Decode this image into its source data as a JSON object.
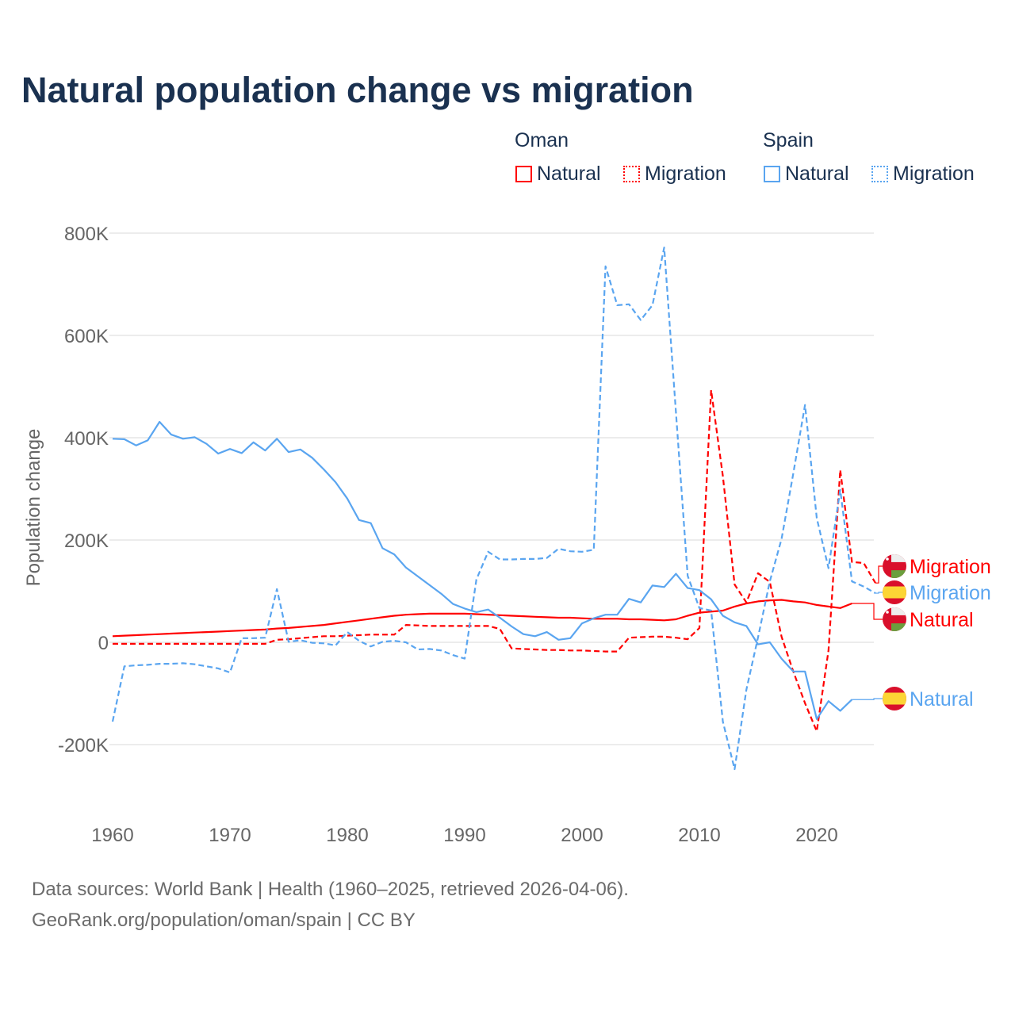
{
  "chart_data": {
    "type": "line",
    "title": "Natural population change vs migration",
    "xlabel": "",
    "ylabel": "Population change",
    "xlim": [
      1960,
      2025
    ],
    "ylim": [
      -200000,
      800000
    ],
    "x_ticks": [
      "1960",
      "1970",
      "1980",
      "1990",
      "2000",
      "2010",
      "2020"
    ],
    "x_tick_values": [
      1960,
      1970,
      1980,
      1990,
      2000,
      2010,
      2020
    ],
    "y_ticks": [
      "800K",
      "600K",
      "400K",
      "200K",
      "0",
      "-200K"
    ],
    "y_tick_values": [
      800000,
      600000,
      400000,
      200000,
      0,
      -200000
    ],
    "grid": true,
    "legend_placement": "top-right",
    "legend_groups": [
      "Oman",
      "Spain"
    ],
    "series": [
      {
        "name": "Natural",
        "country": "Oman",
        "style": "solid",
        "color": "#ff0000",
        "end_label": "Natural",
        "start_year": 1960,
        "values": [
          12000,
          13000,
          14000,
          15000,
          16000,
          17000,
          18000,
          19000,
          20000,
          21000,
          22000,
          23000,
          24000,
          25000,
          27000,
          28000,
          30000,
          32000,
          34000,
          37000,
          40000,
          43000,
          46000,
          49000,
          52000,
          54000,
          55000,
          56000,
          56000,
          56000,
          56000,
          55000,
          54000,
          53000,
          52000,
          51000,
          50000,
          49000,
          48000,
          48000,
          47000,
          46000,
          46000,
          46000,
          45000,
          45000,
          44000,
          43000,
          45000,
          52000,
          58000,
          60000,
          62000,
          70000,
          76000,
          80000,
          82000,
          83000,
          80000,
          78000,
          73000,
          70000,
          67000,
          76000
        ]
      },
      {
        "name": "Migration",
        "country": "Oman",
        "style": "dashed",
        "color": "#ff0000",
        "end_label": "Migration",
        "start_year": 1960,
        "values": [
          -3000,
          -3000,
          -3000,
          -3000,
          -3000,
          -3000,
          -3000,
          -3000,
          -3000,
          -3000,
          -3000,
          -3000,
          -3000,
          -3000,
          5000,
          6000,
          8000,
          10000,
          12000,
          12000,
          13000,
          14000,
          15000,
          15000,
          15000,
          34000,
          33000,
          32000,
          32000,
          32000,
          32000,
          32000,
          32000,
          26000,
          -12000,
          -13000,
          -14000,
          -15000,
          -15000,
          -16000,
          -16000,
          -17000,
          -18000,
          -18000,
          9000,
          10000,
          11000,
          11000,
          9000,
          6000,
          28000,
          493000,
          325000,
          113000,
          78000,
          135000,
          118000,
          11000,
          -57000,
          -119000,
          -174000,
          -16000,
          337000,
          157000,
          155000,
          116000
        ]
      },
      {
        "name": "Natural",
        "country": "Spain",
        "style": "solid",
        "color": "#5aa5f0",
        "end_label": "Natural",
        "start_year": 1960,
        "values": [
          398000,
          397000,
          385000,
          395000,
          431000,
          406000,
          398000,
          401000,
          388000,
          369000,
          378000,
          370000,
          391000,
          375000,
          398000,
          372000,
          377000,
          361000,
          338000,
          313000,
          281000,
          239000,
          233000,
          184000,
          172000,
          146000,
          129000,
          112000,
          95000,
          75000,
          66000,
          59000,
          64000,
          48000,
          31000,
          16000,
          12000,
          20000,
          5000,
          8000,
          37000,
          47000,
          54000,
          54000,
          85000,
          78000,
          111000,
          108000,
          134000,
          106000,
          102000,
          84000,
          52000,
          39000,
          32000,
          -4000,
          0,
          -32000,
          -57000,
          -57000,
          -150000,
          -115000,
          -134000,
          -112000
        ]
      },
      {
        "name": "Migration",
        "country": "Spain",
        "style": "dashed",
        "color": "#5aa5f0",
        "end_label": "Migration",
        "start_year": 1960,
        "values": [
          -155000,
          -47000,
          -45000,
          -44000,
          -42000,
          -42000,
          -41000,
          -43000,
          -47000,
          -51000,
          -59000,
          8000,
          8000,
          9000,
          104000,
          1000,
          4000,
          -1000,
          -2000,
          -6000,
          20000,
          3000,
          -8000,
          1000,
          3000,
          0,
          -14000,
          -13000,
          -16000,
          -25000,
          -32000,
          123000,
          177000,
          162000,
          162000,
          163000,
          163000,
          165000,
          183000,
          178000,
          177000,
          181000,
          735000,
          659000,
          661000,
          630000,
          659000,
          772000,
          450000,
          130000,
          67000,
          62000,
          -155000,
          -248000,
          -93000,
          10000,
          119000,
          202000,
          330000,
          464000,
          243000,
          145000,
          298000,
          119000,
          109000,
          96000
        ]
      }
    ]
  },
  "legend": {
    "oman": {
      "heading": "Oman",
      "natural": "Natural",
      "migration": "Migration"
    },
    "spain": {
      "heading": "Spain",
      "natural": "Natural",
      "migration": "Migration"
    }
  },
  "end_labels": {
    "oman_migration": "Migration",
    "spain_migration": "Migration",
    "oman_natural": "Natural",
    "spain_natural": "Natural"
  },
  "footer": {
    "line1": "Data sources: World Bank | Health (1960–2025, retrieved 2026-04-06).",
    "line2": "GeoRank.org/population/oman/spain | CC BY"
  },
  "colors": {
    "oman": "#ff0000",
    "spain": "#5aa5f0",
    "title": "#1a3150",
    "grid": "#e6e6e6",
    "tick": "#666666"
  }
}
